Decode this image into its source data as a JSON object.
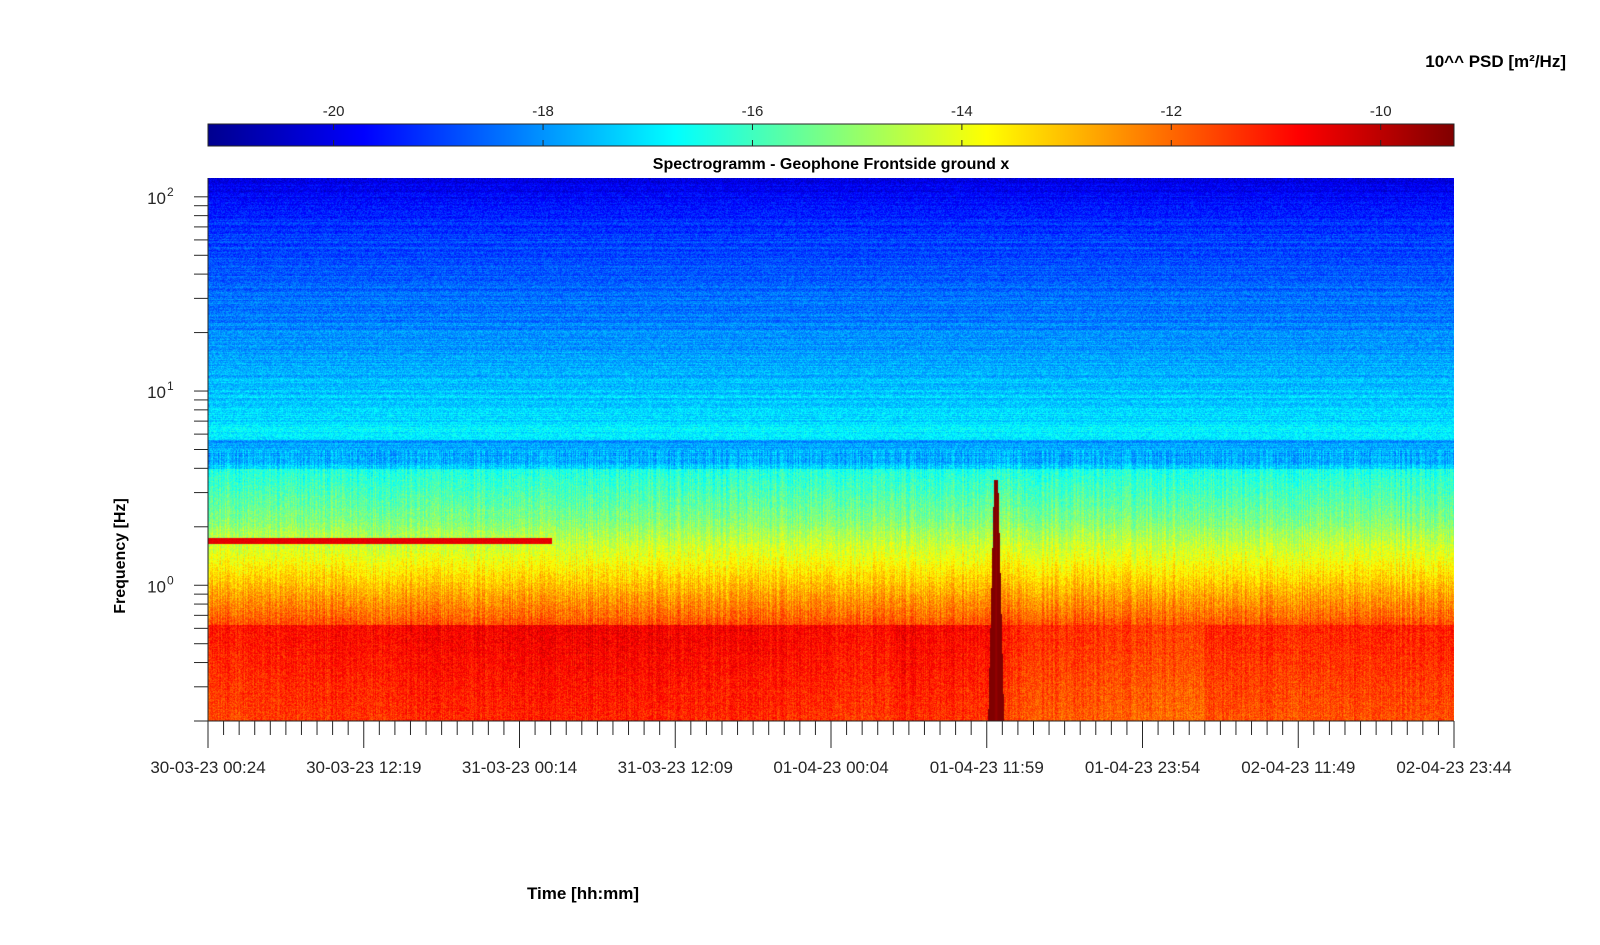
{
  "chart_data": {
    "type": "heatmap",
    "title": "Spectrogramm - Geophone Frontside ground x",
    "xlabel": "Time [hh:mm]",
    "ylabel": "Frequency [Hz]",
    "colorbar_label": "10^^ PSD [m²/Hz]",
    "colormap": "jet",
    "y_scale": "log",
    "ylim": [
      0.2,
      125
    ],
    "y_ticks": [
      {
        "value": 1,
        "base": "10",
        "exp": "0"
      },
      {
        "value": 10,
        "base": "10",
        "exp": "1"
      },
      {
        "value": 100,
        "base": "10",
        "exp": "2"
      }
    ],
    "x_tick_labels": [
      "30-03-23 00:24",
      "30-03-23 12:19",
      "31-03-23 00:14",
      "31-03-23 12:09",
      "01-04-23 00:04",
      "01-04-23 11:59",
      "01-04-23 23:54",
      "02-04-23 11:49",
      "02-04-23 23:44"
    ],
    "color_range": [
      -21.2,
      -9.3
    ],
    "colorbar_ticks": [
      -20,
      -18,
      -16,
      -14,
      -12,
      -10
    ],
    "grid": false,
    "features": [
      {
        "label": "persistent narrowband line",
        "frequency_hz": 1.7,
        "start": "30-03-23 00:24",
        "end": "31-03-23 02:40",
        "log10_psd": -10.5
      },
      {
        "label": "broadband transient",
        "time": "01-04-23 12:40",
        "max_frequency_hz": 3.5,
        "log10_psd": -9.6
      }
    ]
  }
}
